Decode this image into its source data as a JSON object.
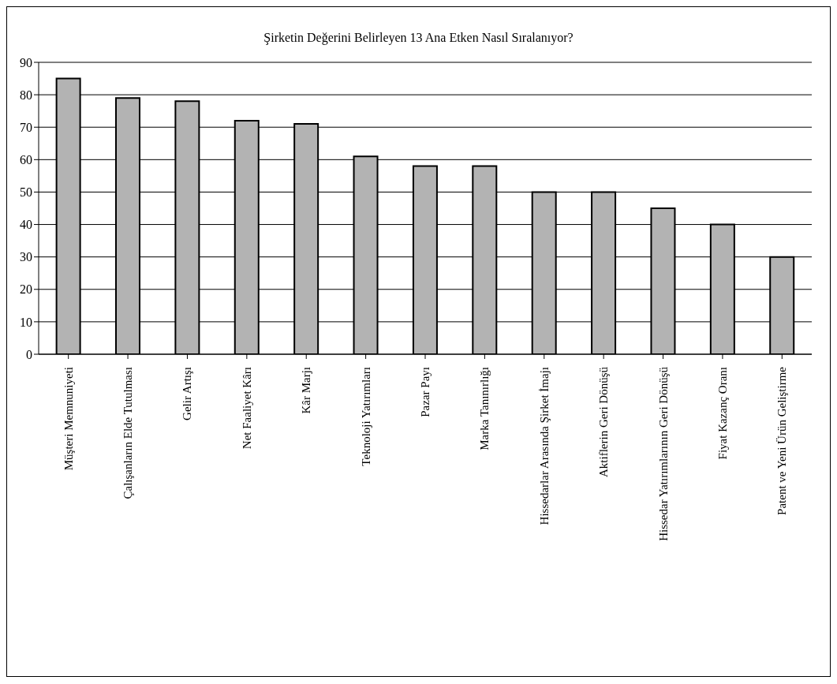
{
  "chart_data": {
    "type": "bar",
    "title": "Şirketin Değerini Belirleyen 13 Ana Etken Nasıl Sıralanıyor?",
    "categories": [
      "Müşteri Memnuniyeti",
      "Çalışanların Elde Tutulması",
      "Gelir Artışı",
      "Net Faaliyet Kârı",
      "Kâr Marjı",
      "Teknoloji Yatırımları",
      "Pazar Payı",
      "Marka Tanınırlığı",
      "Hissedarlar Arasında Şirket İmajı",
      "Aktiflerin Geri Dönüşü",
      "Hissedar Yatırımlarının Geri Dönüşü",
      "Fiyat Kazanç Oranı",
      "Patent ve Yeni Ürün Geliştirme"
    ],
    "values": [
      85,
      79,
      78,
      72,
      71,
      61,
      58,
      58,
      50,
      50,
      45,
      40,
      30
    ],
    "color": "#b3b3b3",
    "ylim": [
      0,
      90
    ],
    "yticks": [
      0,
      10,
      20,
      30,
      40,
      50,
      60,
      70,
      80,
      90
    ],
    "grid": "y",
    "legend": false
  }
}
